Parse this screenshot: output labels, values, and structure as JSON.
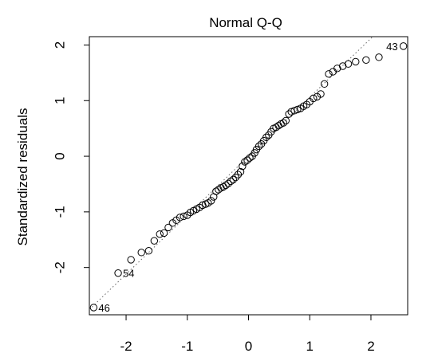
{
  "chart_data": {
    "type": "scatter",
    "title": "Normal Q-Q",
    "xlabel": "",
    "ylabel": "Standardized residuals",
    "xlim": [
      -2.6,
      2.6
    ],
    "ylim": [
      -2.85,
      2.15
    ],
    "x_ticks": [
      -2,
      -1,
      0,
      1,
      2
    ],
    "y_ticks": [
      -2,
      -1,
      0,
      1,
      2
    ],
    "tick_labels_x": [
      "-2",
      "-1",
      "0",
      "1",
      "2"
    ],
    "tick_labels_y": [
      "-2",
      "-1",
      "0",
      "1",
      "2"
    ],
    "grid": false,
    "reference_line": {
      "style": "dotted",
      "slope": 1.06,
      "intercept": 0.0
    },
    "point_labels": [
      {
        "label": "43",
        "x": 2.53,
        "y": 1.98
      },
      {
        "label": "54",
        "x": -2.13,
        "y": -2.1
      },
      {
        "label": "46",
        "x": -2.53,
        "y": -2.72
      }
    ],
    "points": [
      [
        -2.53,
        -2.72
      ],
      [
        -2.13,
        -2.1
      ],
      [
        -1.92,
        -1.86
      ],
      [
        -1.75,
        -1.73
      ],
      [
        -1.63,
        -1.7
      ],
      [
        -1.54,
        -1.52
      ],
      [
        -1.45,
        -1.4
      ],
      [
        -1.38,
        -1.38
      ],
      [
        -1.31,
        -1.28
      ],
      [
        -1.24,
        -1.2
      ],
      [
        -1.18,
        -1.15
      ],
      [
        -1.12,
        -1.1
      ],
      [
        -1.06,
        -1.08
      ],
      [
        -1.0,
        -1.06
      ],
      [
        -0.95,
        -1.01
      ],
      [
        -0.9,
        -0.98
      ],
      [
        -0.85,
        -0.95
      ],
      [
        -0.8,
        -0.92
      ],
      [
        -0.75,
        -0.88
      ],
      [
        -0.7,
        -0.86
      ],
      [
        -0.66,
        -0.84
      ],
      [
        -0.61,
        -0.8
      ],
      [
        -0.57,
        -0.73
      ],
      [
        -0.53,
        -0.63
      ],
      [
        -0.49,
        -0.6
      ],
      [
        -0.45,
        -0.57
      ],
      [
        -0.41,
        -0.55
      ],
      [
        -0.37,
        -0.52
      ],
      [
        -0.33,
        -0.49
      ],
      [
        -0.29,
        -0.45
      ],
      [
        -0.25,
        -0.42
      ],
      [
        -0.21,
        -0.38
      ],
      [
        -0.17,
        -0.33
      ],
      [
        -0.13,
        -0.28
      ],
      [
        -0.1,
        -0.18
      ],
      [
        -0.06,
        -0.1
      ],
      [
        -0.02,
        -0.07
      ],
      [
        0.02,
        -0.03
      ],
      [
        0.06,
        0.0
      ],
      [
        0.1,
        0.06
      ],
      [
        0.13,
        0.12
      ],
      [
        0.17,
        0.18
      ],
      [
        0.21,
        0.22
      ],
      [
        0.25,
        0.28
      ],
      [
        0.29,
        0.34
      ],
      [
        0.33,
        0.38
      ],
      [
        0.37,
        0.44
      ],
      [
        0.41,
        0.5
      ],
      [
        0.45,
        0.52
      ],
      [
        0.49,
        0.55
      ],
      [
        0.53,
        0.58
      ],
      [
        0.57,
        0.6
      ],
      [
        0.61,
        0.64
      ],
      [
        0.66,
        0.76
      ],
      [
        0.7,
        0.8
      ],
      [
        0.75,
        0.82
      ],
      [
        0.8,
        0.84
      ],
      [
        0.85,
        0.86
      ],
      [
        0.9,
        0.9
      ],
      [
        0.95,
        0.93
      ],
      [
        1.0,
        0.98
      ],
      [
        1.06,
        1.04
      ],
      [
        1.12,
        1.07
      ],
      [
        1.18,
        1.12
      ],
      [
        1.24,
        1.3
      ],
      [
        1.31,
        1.48
      ],
      [
        1.38,
        1.52
      ],
      [
        1.45,
        1.58
      ],
      [
        1.54,
        1.62
      ],
      [
        1.63,
        1.66
      ],
      [
        1.75,
        1.7
      ],
      [
        1.92,
        1.73
      ],
      [
        2.13,
        1.78
      ],
      [
        2.53,
        1.98
      ]
    ]
  }
}
